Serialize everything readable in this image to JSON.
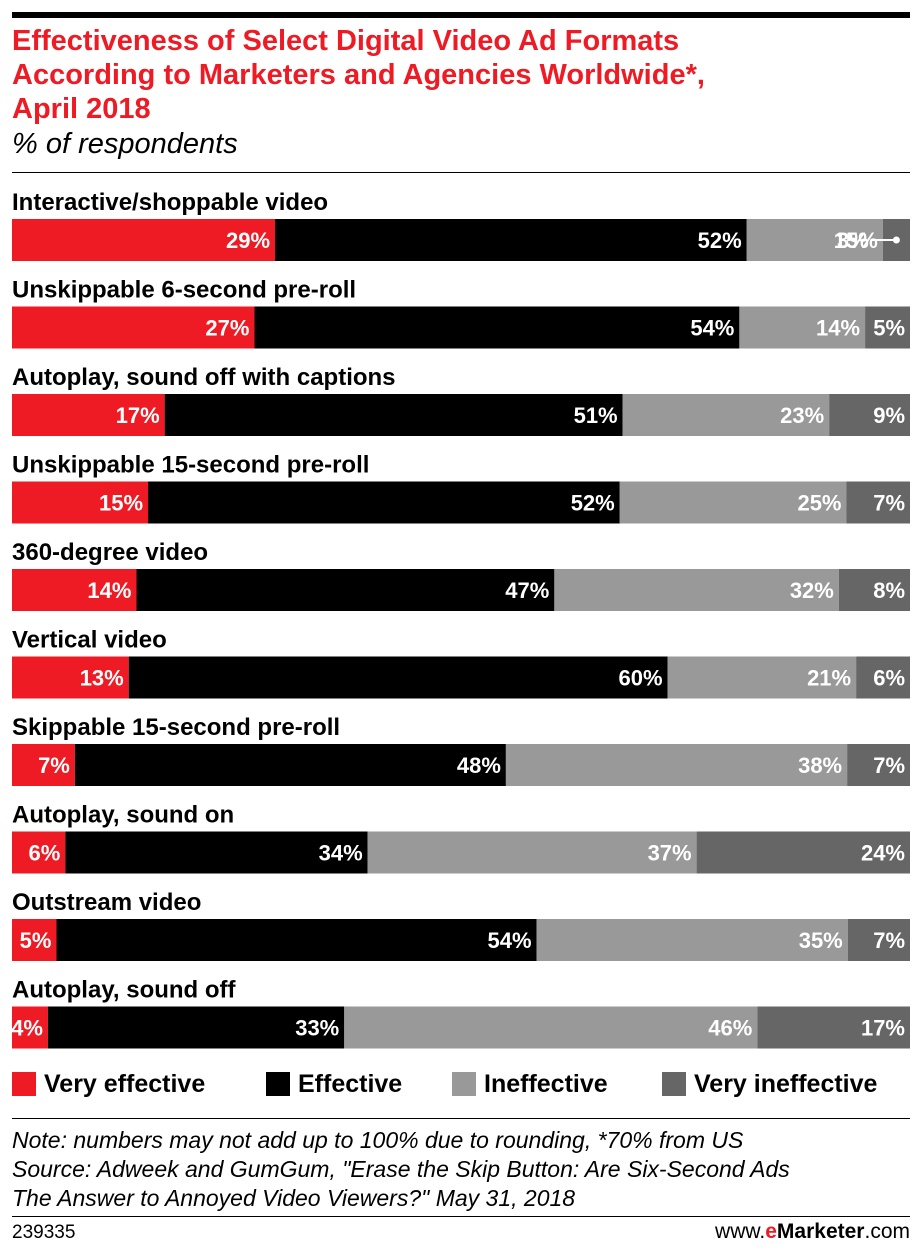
{
  "header": {
    "title_line1": "Effectiveness of Select Digital Video Ad Formats",
    "title_line2": "According to Marketers and Agencies Worldwide*,",
    "title_line3": "April 2018",
    "subtitle": "% of respondents"
  },
  "colors": {
    "very_effective": "#ee1b24",
    "effective": "#000000",
    "ineffective": "#999999",
    "very_ineffective": "#666666"
  },
  "chart_data": {
    "type": "bar",
    "orientation": "horizontal",
    "stacked": true,
    "value_unit": "%",
    "categories": [
      "Interactive/shoppable video",
      "Unskippable 6-second pre-roll",
      "Autoplay, sound off with captions",
      "Unskippable 15-second pre-roll",
      "360-degree video",
      "Vertical video",
      "Skippable 15-second pre-roll",
      "Autoplay, sound on",
      "Outstream video",
      "Autoplay, sound off"
    ],
    "series": [
      {
        "name": "Very effective",
        "values": [
          29,
          27,
          17,
          15,
          14,
          13,
          7,
          6,
          5,
          4
        ]
      },
      {
        "name": "Effective",
        "values": [
          52,
          54,
          51,
          52,
          47,
          60,
          48,
          34,
          54,
          33
        ]
      },
      {
        "name": "Ineffective",
        "values": [
          15,
          14,
          23,
          25,
          32,
          21,
          38,
          37,
          35,
          46
        ]
      },
      {
        "name": "Very ineffective",
        "values": [
          3,
          5,
          9,
          7,
          8,
          6,
          7,
          24,
          7,
          17
        ]
      }
    ],
    "legend_position": "bottom"
  },
  "notes": {
    "line1": "Note: numbers may not add up to 100% due to rounding, *70% from US",
    "line2": "Source: Adweek and GumGum, \"Erase the Skip Button: Are Six-Second Ads",
    "line3": "The Answer to Annoyed Video Viewers?\" May 31, 2018"
  },
  "footer": {
    "chart_id": "239335",
    "brand_prefix": "www.",
    "brand_e": "e",
    "brand_name": "Marketer",
    "brand_suffix": ".com"
  }
}
